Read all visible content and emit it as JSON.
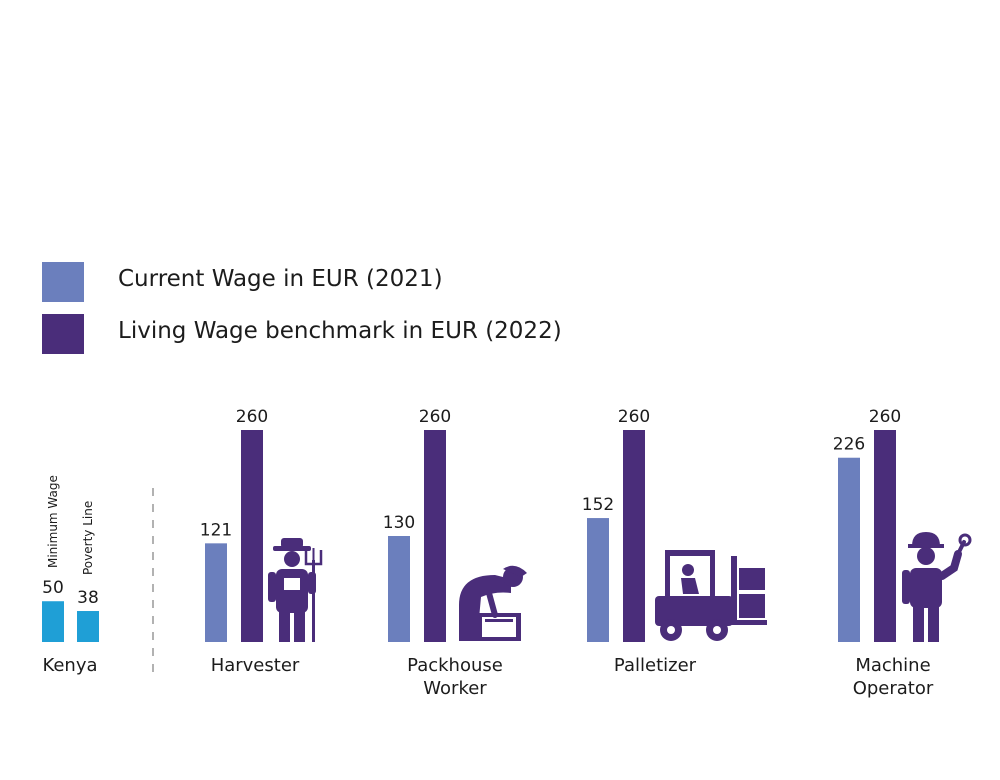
{
  "colors": {
    "current": "#6b7fbd",
    "living": "#4a2d7a",
    "kenya": "#1f9fd6",
    "icon": "#4a2d7a"
  },
  "legend": [
    {
      "label": "Current Wage in EUR (2021)",
      "color": "#6b7fbd"
    },
    {
      "label": "Living Wage benchmark in EUR (2022)",
      "color": "#4a2d7a"
    }
  ],
  "chart_data": {
    "type": "bar",
    "ylim": [
      0,
      260
    ],
    "kenya": {
      "group_label": "Kenya",
      "bars": [
        {
          "name": "Minimum Wage",
          "value": 50
        },
        {
          "name": "Poverty Line",
          "value": 38
        }
      ]
    },
    "groups": [
      {
        "label_lines": [
          "Harvester"
        ],
        "icon": "harvester-icon",
        "current": 121,
        "living": 260
      },
      {
        "label_lines": [
          "Packhouse",
          "Worker"
        ],
        "icon": "packhouse-worker-icon",
        "current": 130,
        "living": 260
      },
      {
        "label_lines": [
          "Palletizer"
        ],
        "icon": "forklift-icon",
        "current": 152,
        "living": 260
      },
      {
        "label_lines": [
          "Machine",
          "Operator"
        ],
        "icon": "machine-operator-icon",
        "current": 226,
        "living": 260
      }
    ]
  }
}
